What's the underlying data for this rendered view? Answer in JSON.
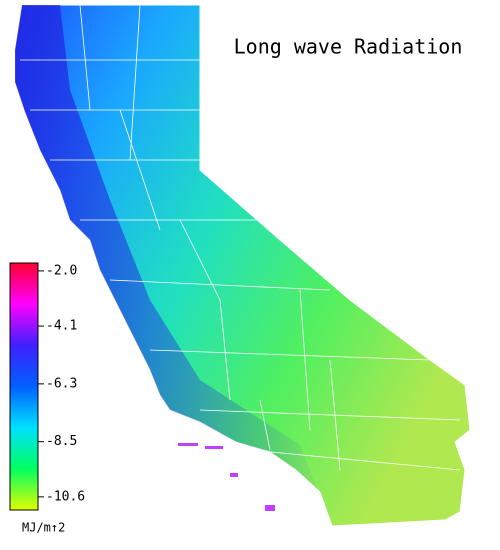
{
  "title": "Long wave Radiation",
  "colorbar": {
    "lim": [
      -1.7,
      -11.1
    ],
    "ticks": [
      {
        "value": -2.0,
        "label": "-2.0"
      },
      {
        "value": -4.1,
        "label": "-4.1"
      },
      {
        "value": -6.3,
        "label": "-6.3"
      },
      {
        "value": -8.5,
        "label": "-8.5"
      },
      {
        "value": -10.6,
        "label": "-10.6"
      }
    ],
    "colors": [
      "#ff0030",
      "#ff00ff",
      "#4020ff",
      "#0060ff",
      "#00e0ff",
      "#00ff60",
      "#e0ff00"
    ],
    "unit": "MJ/m↑2"
  }
}
